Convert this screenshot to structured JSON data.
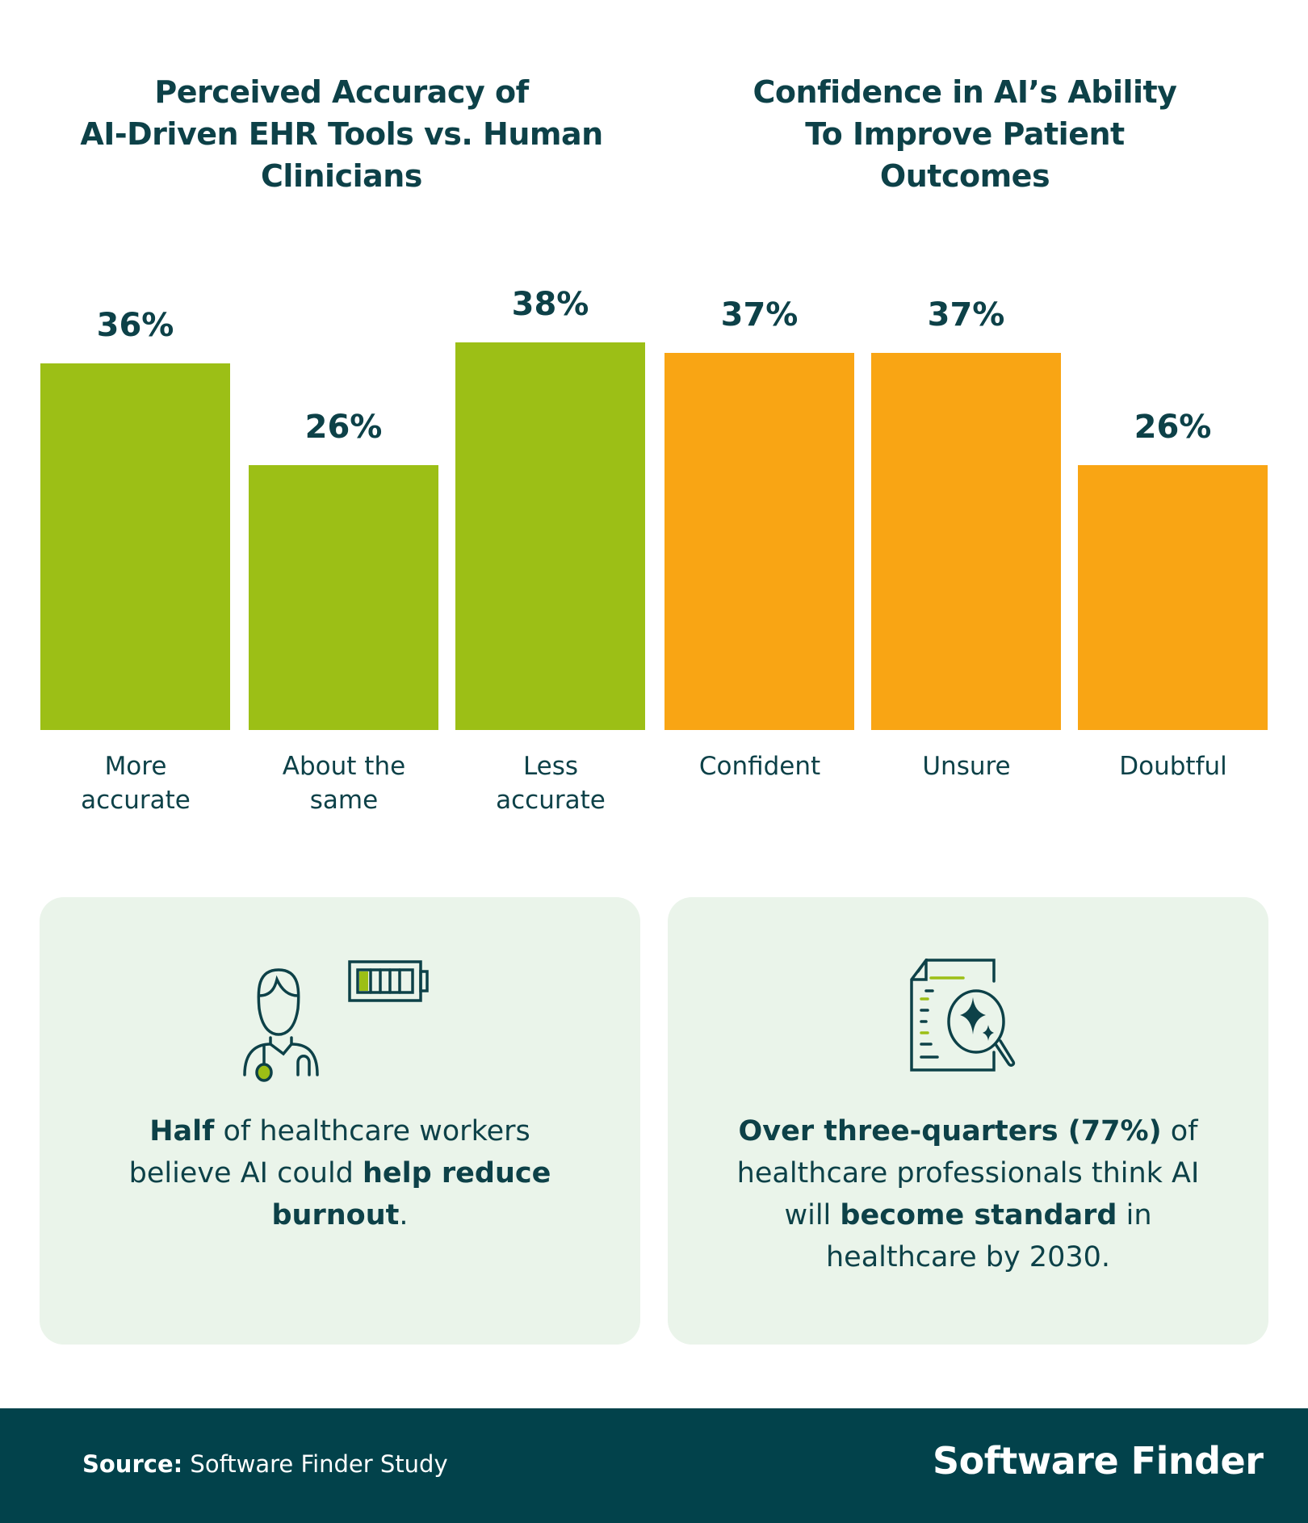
{
  "chart_data": [
    {
      "type": "bar",
      "title": "Perceived Accuracy of AI-Driven EHR Tools vs. Human Clinicians",
      "title_lines": [
        "Perceived Accuracy of",
        "AI-Driven EHR Tools vs. Human",
        "Clinicians"
      ],
      "categories": [
        "More accurate",
        "About the same",
        "Less accurate"
      ],
      "category_lines": [
        [
          "More",
          "accurate"
        ],
        [
          "About the",
          "same"
        ],
        [
          "Less",
          "accurate"
        ]
      ],
      "values": [
        36,
        26,
        38
      ],
      "data_labels": [
        "36%",
        "26%",
        "38%"
      ],
      "color": "#9cbf16",
      "ylim": [
        0,
        40
      ],
      "grid": false,
      "axes_visible": false
    },
    {
      "type": "bar",
      "title": "Confidence in AI’s Ability To Improve Patient Outcomes",
      "title_lines": [
        "Confidence in AI’s Ability",
        "To Improve Patient",
        "Outcomes"
      ],
      "categories": [
        "Confident",
        "Unsure",
        "Doubtful"
      ],
      "category_lines": [
        [
          "Confident"
        ],
        [
          "Unsure"
        ],
        [
          "Doubtful"
        ]
      ],
      "values": [
        37,
        37,
        26
      ],
      "data_labels": [
        "37%",
        "37%",
        "26%"
      ],
      "color": "#f9a514",
      "ylim": [
        0,
        40
      ],
      "grid": false,
      "axes_visible": false
    }
  ],
  "cards": [
    {
      "icon": "doctor-battery-icon",
      "parts": [
        {
          "t": "Half",
          "b": true
        },
        {
          "t": " of healthcare workers believe AI could ",
          "b": false
        },
        {
          "t": "help reduce burnout",
          "b": true
        },
        {
          "t": ".",
          "b": false
        }
      ]
    },
    {
      "icon": "document-search-sparkle-icon",
      "parts": [
        {
          "t": "Over three-quarters (77%)",
          "b": true
        },
        {
          "t": " of healthcare professionals think AI will ",
          "b": false
        },
        {
          "t": "become standard",
          "b": true
        },
        {
          "t": " in healthcare by 2030.",
          "b": false
        }
      ]
    }
  ],
  "footer": {
    "source_label": "Source:",
    "source_value": " Software Finder Study",
    "logo_text": "Software Finder"
  },
  "colors": {
    "text": "#0d4148",
    "footer_bg": "#02424b",
    "card_bg": "#eaf4ea",
    "green": "#9cbf16",
    "orange": "#f9a514"
  }
}
